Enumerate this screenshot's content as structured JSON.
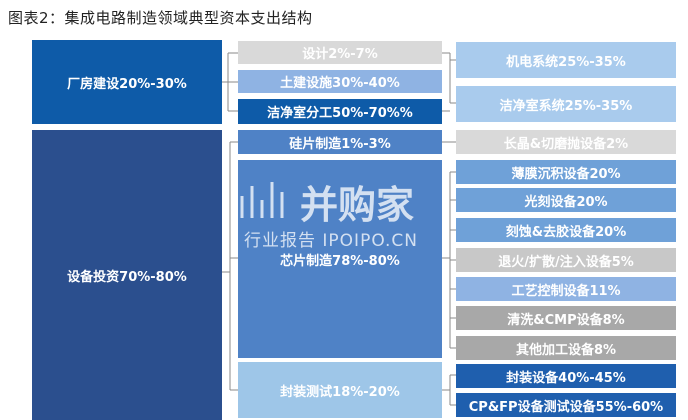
{
  "title": "图表2：集成电路制造领域典型资本支出结构",
  "level1": {
    "plant": "厂房建设20%-30%",
    "equipment": "设备投资70%-80%"
  },
  "level2": {
    "design": "设计2%-7%",
    "civil": "土建设施30%-40%",
    "cleanroom_sub": "洁净室分工50%-70%%",
    "wafer": "硅片制造1%-3%",
    "chip": "芯片制造78%-80%",
    "packaging": "封装测试18%-20%"
  },
  "level3": {
    "mep": "机电系统25%-35%",
    "cleanroom_sys": "洁净室系统25%-35%",
    "crystal": "长晶&切磨抛设备2%",
    "film": "薄膜沉积设备20%",
    "litho": "光刻设备20%",
    "etch": "刻蚀&去胶设备20%",
    "anneal": "退火/扩散/注入设备5%",
    "process_ctrl": "工艺控制设备11%",
    "cmp": "清洗&CMP设备8%",
    "other": "其他加工设备8%",
    "pkg_eq": "封装设备40%-45%",
    "test_eq": "CP&FP设备测试设备55%-60%"
  },
  "watermark": {
    "main": "并购家",
    "sub": "行业报告 IPOIPO.CN"
  }
}
